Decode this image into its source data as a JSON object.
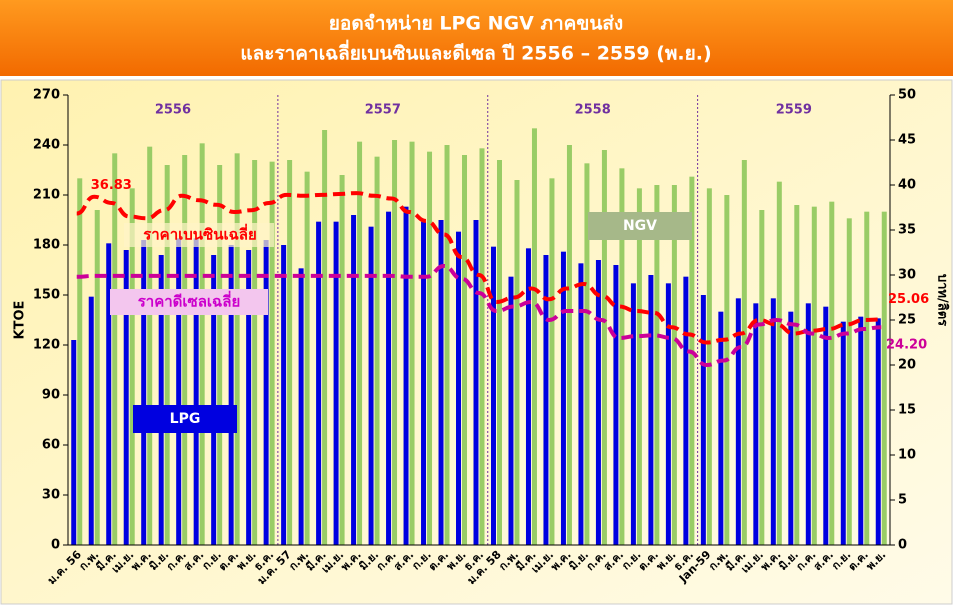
{
  "chart_data": {
    "type": "bar_line",
    "title_lines": [
      "ยอดจำหน่าย LPG  NGV ภาคขนส่ง",
      "และราคาเฉลี่ยเบนซินและดีเซล ปี 2556 – 2559 (พ.ย.)"
    ],
    "y_label": "KTOE",
    "y2_label": "บาท/ลิตร",
    "categories": [
      "ม.ค. 56",
      "ก.พ.",
      "มี.ค.",
      "เม.ย.",
      "พ.ค.",
      "มิ.ย.",
      "ก.ค.",
      "ส.ค.",
      "ก.ย.",
      "ต.ค.",
      "พ.ย.",
      "ธ.ค.",
      "ม.ค. 57",
      "ก.พ.",
      "มี.ค.",
      "เม.ย.",
      "พ.ค.",
      "มิ.ย.",
      "ก.ค.",
      "ส.ค.",
      "ก.ย.",
      "ต.ค.",
      "พ.ย.",
      "ธ.ค.",
      "ม.ค. 58",
      "ก.พ.",
      "มี.ค.",
      "เม.ย.",
      "พ.ค.",
      "มิ.ย.",
      "ก.ค.",
      "ส.ค.",
      "ก.ย.",
      "ต.ค.",
      "พ.ย.",
      "ธ.ค.",
      "Jan-59",
      "ก.พ.",
      "มี.ค.",
      "เม.ย.",
      "พ.ค.",
      "มิ.ย.",
      "ก.ค.",
      "ส.ค.",
      "ก.ย.",
      "ต.ค.",
      "พ.ย."
    ],
    "years": [
      "2556",
      "2557",
      "2558",
      "2559"
    ],
    "series": [
      {
        "name": "LPG",
        "kind": "bar",
        "color": "#0000e0",
        "values": [
          123,
          149,
          181,
          177,
          183,
          174,
          184,
          184,
          174,
          180,
          177,
          183,
          180,
          166,
          194,
          194,
          198,
          191,
          200,
          203,
          194,
          195,
          188,
          195,
          179,
          161,
          178,
          174,
          176,
          169,
          171,
          168,
          157,
          162,
          157,
          161,
          150,
          140,
          148,
          145,
          148,
          140,
          145,
          143,
          134,
          137,
          136
        ]
      },
      {
        "name": "NGV",
        "kind": "bar",
        "color": "#99cc66",
        "values": [
          220,
          201,
          235,
          214,
          239,
          228,
          234,
          241,
          228,
          235,
          231,
          230,
          231,
          224,
          249,
          222,
          242,
          233,
          243,
          242,
          236,
          240,
          234,
          238,
          231,
          219,
          250,
          220,
          240,
          229,
          237,
          226,
          214,
          216,
          216,
          221,
          214,
          210,
          231,
          201,
          218,
          204,
          203,
          206,
          196,
          200,
          200
        ]
      },
      {
        "name": "ราคาเบนซินเฉลี่ย",
        "kind": "line",
        "axis": "y2",
        "color": "#ff0000",
        "values": [
          36.83,
          38.7,
          38.0,
          36.5,
          36.3,
          37.2,
          38.8,
          38.3,
          37.8,
          37.0,
          37.2,
          38.0,
          38.9,
          38.8,
          38.9,
          39.0,
          39.1,
          38.8,
          38.5,
          37.0,
          36.0,
          34.5,
          32.0,
          30.0,
          27.0,
          27.5,
          28.5,
          27.3,
          28.5,
          29.0,
          27.7,
          26.5,
          26.0,
          25.8,
          24.2,
          23.4,
          22.5,
          22.8,
          23.5,
          25.0,
          24.5,
          23.5,
          23.8,
          24.0,
          24.5,
          25.0,
          25.06
        ]
      },
      {
        "name": "ราคาดีเซลเฉลี่ย",
        "kind": "line",
        "axis": "y2",
        "color": "#cc0099",
        "values": [
          29.8,
          29.9,
          29.9,
          29.9,
          29.9,
          29.9,
          29.9,
          29.9,
          29.9,
          29.9,
          29.9,
          29.9,
          29.9,
          29.9,
          29.9,
          29.9,
          29.9,
          29.9,
          29.9,
          29.8,
          29.8,
          31.0,
          29.6,
          28.0,
          26.0,
          26.5,
          27.0,
          25.0,
          26.0,
          26.0,
          25.0,
          23.0,
          23.2,
          23.3,
          23.0,
          21.5,
          20.0,
          20.5,
          22.0,
          24.5,
          25.0,
          24.5,
          23.5,
          23.0,
          23.5,
          24.0,
          24.2
        ]
      }
    ],
    "annotations": [
      "36.83",
      "25.06",
      "24.20"
    ],
    "ylim": [
      0,
      270
    ],
    "yticks": [
      0,
      30,
      60,
      90,
      120,
      150,
      180,
      210,
      240,
      270
    ],
    "y2lim": [
      0,
      50
    ],
    "y2ticks": [
      0,
      5,
      10,
      15,
      20,
      25,
      30,
      35,
      40,
      45,
      50
    ]
  }
}
